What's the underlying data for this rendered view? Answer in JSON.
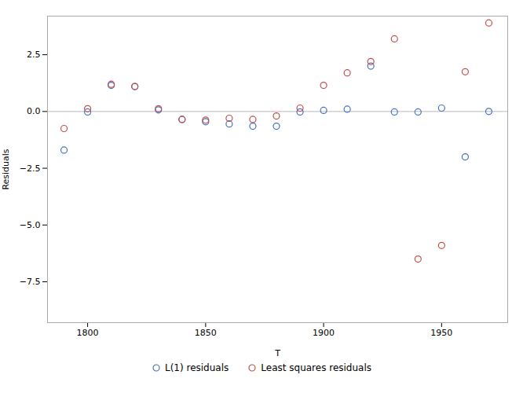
{
  "chart_data": {
    "type": "scatter",
    "x": [
      1790,
      1800,
      1810,
      1820,
      1830,
      1840,
      1850,
      1860,
      1870,
      1880,
      1890,
      1900,
      1910,
      1920,
      1930,
      1940,
      1950,
      1960,
      1970
    ],
    "series": [
      {
        "name": "L(1) residuals",
        "color": "#4472C4",
        "marker": "circle",
        "values": [
          -1.7,
          -0.02,
          1.15,
          1.1,
          0.07,
          -0.35,
          -0.45,
          -0.55,
          -0.65,
          -0.65,
          -0.02,
          0.05,
          0.1,
          2.0,
          -0.02,
          -0.02,
          0.15,
          -2.0,
          0.0
        ]
      },
      {
        "name": "Least squares residuals",
        "color": "#C0504D",
        "marker": "circle",
        "values": [
          -0.75,
          0.12,
          1.2,
          1.1,
          0.12,
          -0.35,
          -0.38,
          -0.3,
          -0.35,
          -0.2,
          0.15,
          1.15,
          1.7,
          2.2,
          3.2,
          -6.5,
          -5.9,
          1.75,
          3.9
        ]
      }
    ],
    "xlabel": "T",
    "ylabel": "Residuals",
    "xlim": [
      1783,
      1978
    ],
    "ylim": [
      -9.3,
      4.2
    ],
    "xticks": [
      1800,
      1850,
      1900,
      1950
    ],
    "yticks": [
      {
        "value": 0.0,
        "label": "0.0"
      },
      2.5,
      {
        "value": -2.5,
        "label": "−2.5"
      },
      {
        "value": -5.0,
        "label": "−5.0"
      },
      {
        "value": -7.5,
        "label": "−7.5"
      }
    ],
    "hline": 0.0,
    "grid": false,
    "legend": "bottom"
  }
}
